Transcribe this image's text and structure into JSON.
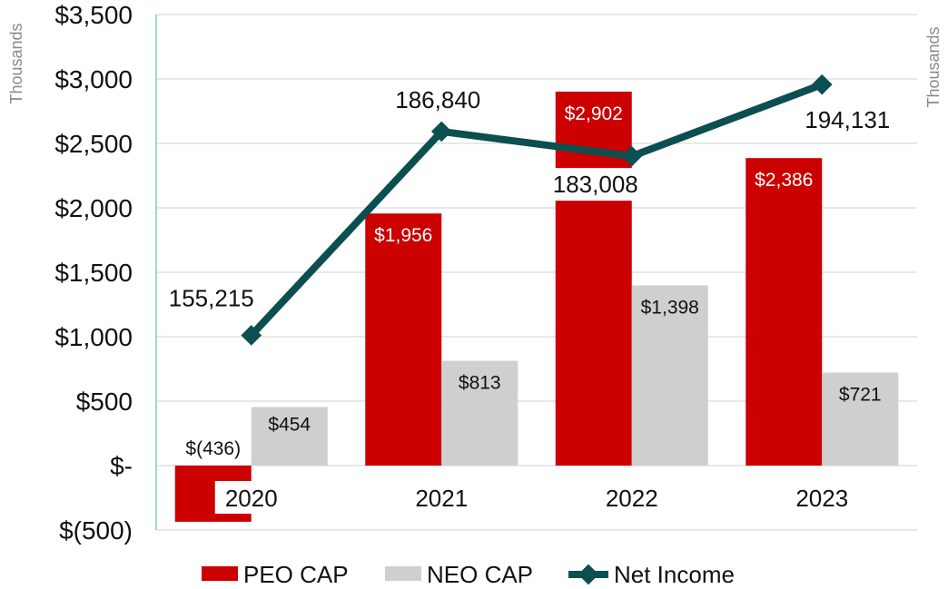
{
  "chart_data": {
    "type": "bar",
    "categories": [
      "2020",
      "2021",
      "2022",
      "2023"
    ],
    "series": [
      {
        "name": "PEO CAP",
        "kind": "bar",
        "color": "#cc0000",
        "values": [
          -436,
          1956,
          2902,
          2386
        ],
        "labels": [
          "$(436)",
          "$1,956",
          "$2,902",
          "$2,386"
        ]
      },
      {
        "name": "NEO CAP",
        "kind": "bar",
        "color": "#cfcfcf",
        "values": [
          454,
          813,
          1398,
          721
        ],
        "labels": [
          "$454",
          "$813",
          "$1,398",
          "$721"
        ]
      },
      {
        "name": "Net Income",
        "kind": "line",
        "axis": "right",
        "color": "#0b4f50",
        "values": [
          155215,
          186840,
          183008,
          194131
        ],
        "labels": [
          "155,215",
          "186,840",
          "183,008",
          "194,131"
        ]
      }
    ],
    "left_axis": {
      "unit_label": "Thousands",
      "ylim": [
        -500,
        3500
      ],
      "ticks": [
        -500,
        0,
        500,
        1000,
        1500,
        2000,
        2500,
        3000,
        3500
      ],
      "tick_labels": [
        "$(500)",
        "$-",
        "$500",
        "$1,000",
        "$1,500",
        "$2,000",
        "$2,500",
        "$3,000",
        "$3,500"
      ]
    },
    "right_axis": {
      "unit_label": "Thousands",
      "ylim": [
        125000,
        205000
      ]
    },
    "grid": true,
    "legend": "bottom-center"
  }
}
